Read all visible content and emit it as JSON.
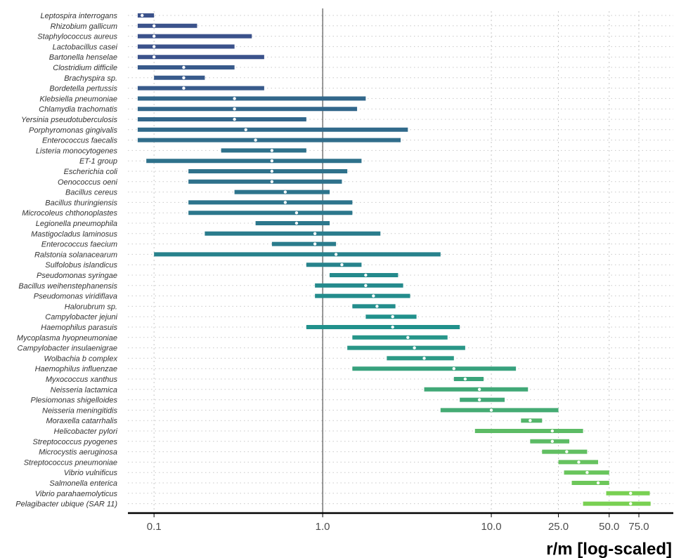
{
  "chart_data": {
    "type": "interval",
    "xlabel": "r/m [log-scaled]",
    "xscale": "log",
    "xlim": [
      0.07,
      120
    ],
    "xticks": [
      0.1,
      1.0,
      10.0,
      25.0,
      50.0,
      75.0
    ],
    "xtick_labels": [
      "0.1",
      "1.0",
      "10.0",
      "25.0",
      "50.0",
      "75.0"
    ],
    "reference_line": 1.0,
    "grid": true,
    "colors": {
      "low": "#3b528b",
      "mid": "#21918c",
      "high": "#7ad151"
    },
    "rows": [
      {
        "species": "Leptospira interrogans",
        "low": 0.08,
        "mid": 0.085,
        "high": 0.1
      },
      {
        "species": "Rhizobium gallicum",
        "low": 0.08,
        "mid": 0.1,
        "high": 0.18
      },
      {
        "species": "Staphylococcus aureus",
        "low": 0.08,
        "mid": 0.1,
        "high": 0.38
      },
      {
        "species": "Lactobacillus casei",
        "low": 0.08,
        "mid": 0.1,
        "high": 0.3
      },
      {
        "species": "Bartonella henselae",
        "low": 0.08,
        "mid": 0.1,
        "high": 0.45
      },
      {
        "species": "Clostridium difficile",
        "low": 0.08,
        "mid": 0.15,
        "high": 0.3
      },
      {
        "species": "Brachyspira sp.",
        "low": 0.1,
        "mid": 0.15,
        "high": 0.2
      },
      {
        "species": "Bordetella pertussis",
        "low": 0.08,
        "mid": 0.15,
        "high": 0.45
      },
      {
        "species": "Klebsiella pneumoniae",
        "low": 0.08,
        "mid": 0.3,
        "high": 1.8
      },
      {
        "species": "Chlamydia trachomatis",
        "low": 0.08,
        "mid": 0.3,
        "high": 1.6
      },
      {
        "species": "Yersinia pseudotuberculosis",
        "low": 0.08,
        "mid": 0.3,
        "high": 0.8
      },
      {
        "species": "Porphyromonas gingivalis",
        "low": 0.08,
        "mid": 0.35,
        "high": 3.2
      },
      {
        "species": "Enterococcus faecalis",
        "low": 0.08,
        "mid": 0.4,
        "high": 2.9
      },
      {
        "species": "Listeria monocytogenes",
        "low": 0.25,
        "mid": 0.5,
        "high": 0.8
      },
      {
        "species": "ET-1 group",
        "low": 0.09,
        "mid": 0.5,
        "high": 1.7
      },
      {
        "species": "Escherichia coli",
        "low": 0.16,
        "mid": 0.5,
        "high": 1.4
      },
      {
        "species": "Oenococcus oeni",
        "low": 0.16,
        "mid": 0.5,
        "high": 1.3
      },
      {
        "species": "Bacillus cereus",
        "low": 0.3,
        "mid": 0.6,
        "high": 1.1
      },
      {
        "species": "Bacillus thuringiensis",
        "low": 0.16,
        "mid": 0.6,
        "high": 1.5
      },
      {
        "species": "Microcoleus chthonoplastes",
        "low": 0.16,
        "mid": 0.7,
        "high": 1.5
      },
      {
        "species": "Legionella pneumophila",
        "low": 0.4,
        "mid": 0.7,
        "high": 1.1
      },
      {
        "species": "Mastigocladus laminosus",
        "low": 0.2,
        "mid": 0.9,
        "high": 2.2
      },
      {
        "species": "Enterococcus faecium",
        "low": 0.5,
        "mid": 0.9,
        "high": 1.2
      },
      {
        "species": "Ralstonia solanacearum",
        "low": 0.1,
        "mid": 1.2,
        "high": 5.0
      },
      {
        "species": "Sulfolobus islandicus",
        "low": 0.8,
        "mid": 1.3,
        "high": 1.7
      },
      {
        "species": "Pseudomonas syringae",
        "low": 1.1,
        "mid": 1.8,
        "high": 2.8
      },
      {
        "species": "Bacillus weihenstephanensis",
        "low": 0.9,
        "mid": 1.8,
        "high": 3.0
      },
      {
        "species": "Pseudomonas viridiflava",
        "low": 0.9,
        "mid": 2.0,
        "high": 3.3
      },
      {
        "species": "Halorubrum sp.",
        "low": 1.5,
        "mid": 2.1,
        "high": 2.7
      },
      {
        "species": "Campylobacter jejuni",
        "low": 1.8,
        "mid": 2.6,
        "high": 3.6
      },
      {
        "species": "Haemophilus parasuis",
        "low": 0.8,
        "mid": 2.6,
        "high": 6.5
      },
      {
        "species": "Mycoplasma hyopneumoniae",
        "low": 1.5,
        "mid": 3.2,
        "high": 5.5
      },
      {
        "species": "Campylobacter insulaenigrae",
        "low": 1.4,
        "mid": 3.5,
        "high": 7.0
      },
      {
        "species": "Wolbachia b complex",
        "low": 2.4,
        "mid": 4.0,
        "high": 6.0
      },
      {
        "species": "Haemophilus influenzae",
        "low": 1.5,
        "mid": 6.0,
        "high": 14.0
      },
      {
        "species": "Myxococcus xanthus",
        "low": 6.0,
        "mid": 7.0,
        "high": 9.0
      },
      {
        "species": "Neisseria lactamica",
        "low": 4.0,
        "mid": 8.5,
        "high": 16.5
      },
      {
        "species": "Plesiomonas shigelloides",
        "low": 6.5,
        "mid": 8.5,
        "high": 12.0
      },
      {
        "species": "Neisseria meningitidis",
        "low": 5.0,
        "mid": 10.0,
        "high": 25.0
      },
      {
        "species": "Moraxella catarrhalis",
        "low": 15.0,
        "mid": 17.0,
        "high": 20.0
      },
      {
        "species": "Helicobacter pylori",
        "low": 8.0,
        "mid": 23.0,
        "high": 35.0
      },
      {
        "species": "Streptococcus pyogenes",
        "low": 17.0,
        "mid": 23.0,
        "high": 29.0
      },
      {
        "species": "Microcystis aeruginosa",
        "low": 20.0,
        "mid": 28.0,
        "high": 37.0
      },
      {
        "species": "Streptococcus pneumoniae",
        "low": 25.0,
        "mid": 33.0,
        "high": 43.0
      },
      {
        "species": "Vibrio vulnificus",
        "low": 27.0,
        "mid": 37.0,
        "high": 50.0
      },
      {
        "species": "Salmonella enterica",
        "low": 30.0,
        "mid": 43.0,
        "high": 50.0
      },
      {
        "species": "Vibrio parahaemolyticus",
        "low": 48.0,
        "mid": 67.0,
        "high": 87.0
      },
      {
        "species": "Pelagibacter ubique (SAR 11)",
        "low": 35.0,
        "mid": 67.0,
        "high": 88.0
      }
    ]
  }
}
